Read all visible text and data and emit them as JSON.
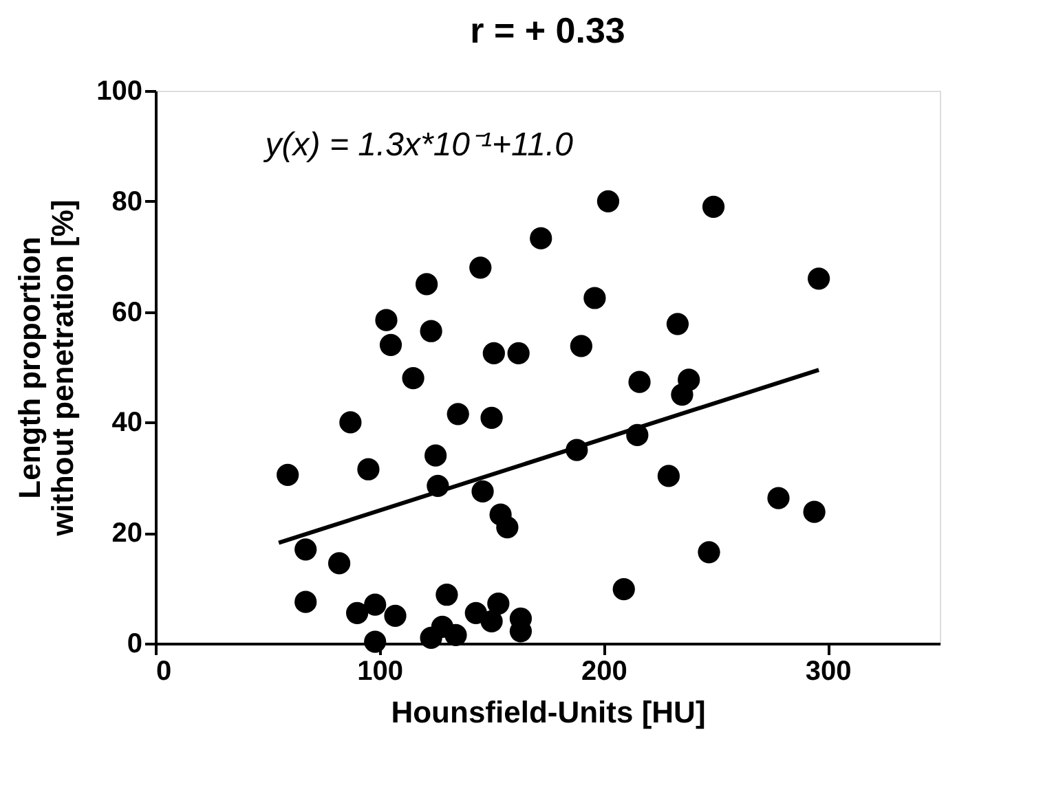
{
  "chart_data": {
    "type": "scatter",
    "title": "r = + 0.33",
    "xlabel": "Hounsfield-Units [HU]",
    "ylabel": "Length proportion\nwithout penetration [%]",
    "annotations": [
      "y(x) = 1.3x*10⁻¹+11.0"
    ],
    "xlim": [
      0,
      350
    ],
    "xticks": [
      0,
      100,
      200,
      300
    ],
    "ylim": [
      0,
      100
    ],
    "yticks": [
      0,
      20,
      40,
      60,
      80,
      100
    ],
    "grid": false,
    "marker": "circle",
    "series": [
      {
        "color": "#000000",
        "x": [
          59,
          67,
          67,
          82,
          87,
          90,
          95,
          98,
          98,
          103,
          105,
          107,
          115,
          121,
          123,
          123,
          125,
          126,
          128,
          130,
          134,
          135,
          143,
          145,
          146,
          150,
          150,
          151,
          153,
          154,
          157,
          162,
          163,
          163,
          172,
          188,
          190,
          196,
          202,
          209,
          215,
          216,
          229,
          233,
          235,
          238,
          247,
          249,
          278,
          294,
          296
        ],
        "values": [
          30.5,
          17,
          7.5,
          14.5,
          40,
          5.5,
          31.5,
          7,
          0.3,
          58.5,
          54,
          5,
          48,
          65,
          56.5,
          1,
          34,
          28.5,
          3,
          8.8,
          1.5,
          41.5,
          5.5,
          68,
          27.5,
          40.8,
          4,
          52.5,
          7.2,
          23.3,
          21,
          52.5,
          4.5,
          2.2,
          73.3,
          35,
          53.8,
          62.5,
          80,
          9.8,
          37.7,
          47.3,
          30.3,
          57.8,
          45,
          47.7,
          16.5,
          79,
          26.3,
          23.8,
          66
        ]
      },
      {
        "type": "line",
        "color": "#000000",
        "line_style": "solid",
        "marker": "none",
        "x": [
          55,
          296
        ],
        "values": [
          18.2,
          49.5
        ]
      }
    ]
  }
}
